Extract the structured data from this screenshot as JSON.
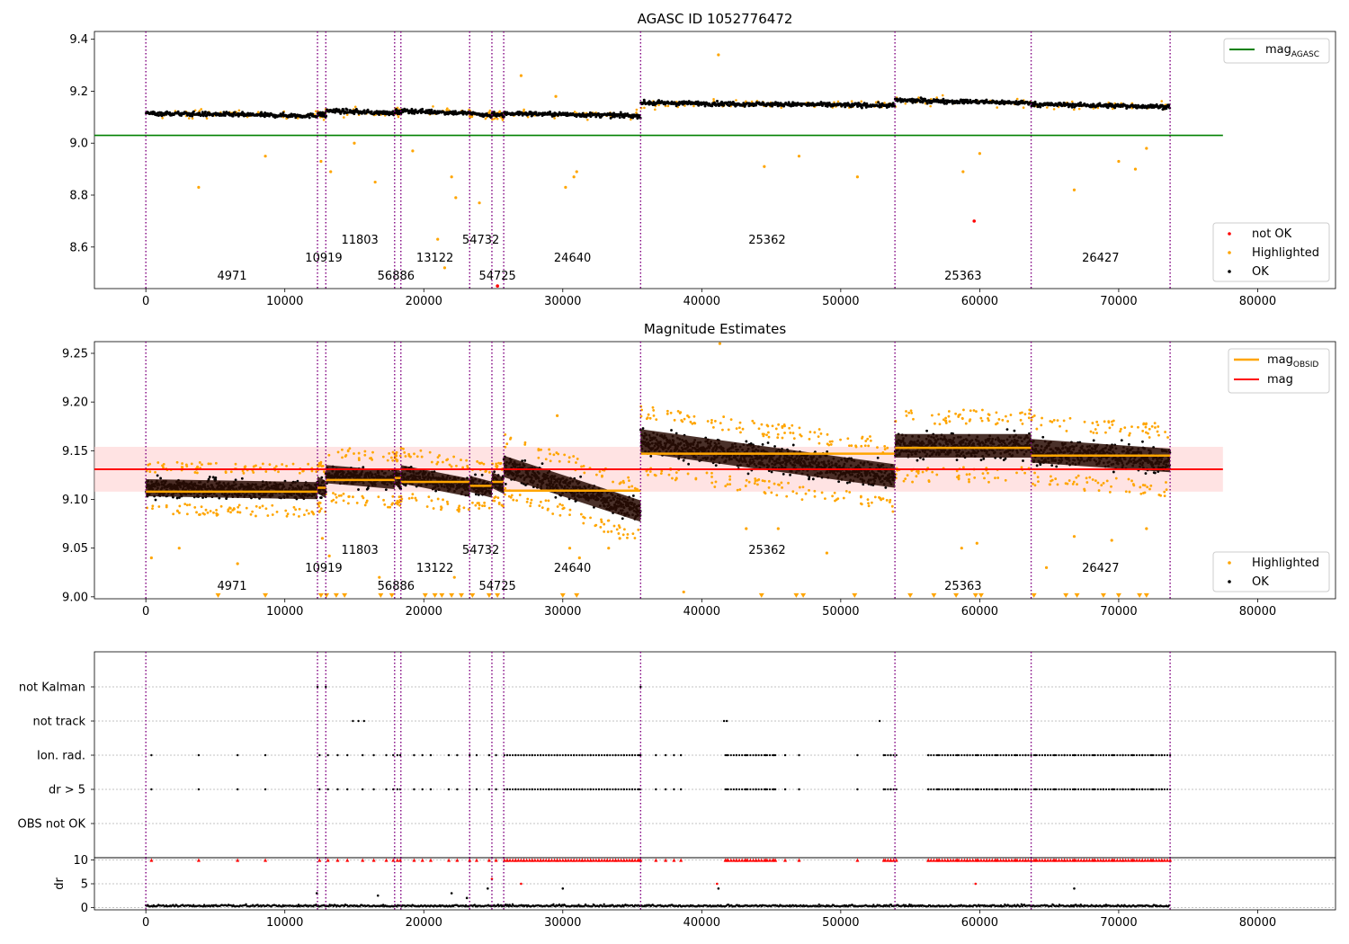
{
  "chart_data": [
    {
      "type": "scatter",
      "title": "AGASC ID 1052776472",
      "xlim": [
        -3700,
        85600
      ],
      "ylim": [
        8.44,
        9.43
      ],
      "xticks": [
        "0",
        "10000",
        "20000",
        "30000",
        "40000",
        "50000",
        "60000",
        "70000",
        "80000"
      ],
      "yticks": [
        "8.6",
        "8.8",
        "9.0",
        "9.2",
        "9.4"
      ],
      "reference_line": {
        "name": "mag_AGASC",
        "value": 9.03,
        "color": "#008000"
      },
      "segments": [
        {
          "x0": 0,
          "x1": 12350,
          "level": 9.11
        },
        {
          "x0": 12350,
          "x1": 12950,
          "level": 9.11
        },
        {
          "x0": 12950,
          "x1": 17900,
          "level": 9.12
        },
        {
          "x0": 17900,
          "x1": 18350,
          "level": 9.12
        },
        {
          "x0": 18350,
          "x1": 23300,
          "level": 9.12
        },
        {
          "x0": 23300,
          "x1": 24900,
          "level": 9.11
        },
        {
          "x0": 24900,
          "x1": 25750,
          "level": 9.11
        },
        {
          "x0": 25750,
          "x1": 35600,
          "level": 9.11
        },
        {
          "x0": 35600,
          "x1": 53900,
          "level": 9.15
        },
        {
          "x0": 53900,
          "x1": 63700,
          "level": 9.16
        },
        {
          "x0": 63700,
          "x1": 73700,
          "level": 9.145
        }
      ],
      "outliers": [
        [
          3800,
          8.83
        ],
        [
          8600,
          8.95
        ],
        [
          12600,
          8.93
        ],
        [
          13300,
          8.89
        ],
        [
          15000,
          9.0
        ],
        [
          16500,
          8.85
        ],
        [
          19200,
          8.97
        ],
        [
          21000,
          8.63
        ],
        [
          21500,
          8.52
        ],
        [
          22000,
          8.87
        ],
        [
          22300,
          8.79
        ],
        [
          24000,
          8.77
        ],
        [
          27000,
          9.26
        ],
        [
          29500,
          9.18
        ],
        [
          30200,
          8.83
        ],
        [
          30800,
          8.87
        ],
        [
          31000,
          8.89
        ],
        [
          41200,
          9.34
        ],
        [
          44500,
          8.91
        ],
        [
          47000,
          8.95
        ],
        [
          51200,
          8.87
        ],
        [
          58800,
          8.89
        ],
        [
          60000,
          8.96
        ],
        [
          66800,
          8.82
        ],
        [
          70000,
          8.93
        ],
        [
          71200,
          8.9
        ],
        [
          72000,
          8.98
        ]
      ],
      "not_ok": [
        [
          59600,
          8.7
        ],
        [
          25300,
          8.45
        ]
      ],
      "obsid_boundaries": [
        0,
        12350,
        12950,
        17900,
        18350,
        23300,
        24900,
        25750,
        35600,
        53900,
        63700,
        73700
      ],
      "obsid_labels": [
        {
          "label": "4971",
          "x": 6200,
          "row": 2
        },
        {
          "label": "10919",
          "x": 12800,
          "row": 1
        },
        {
          "label": "11803",
          "x": 15400,
          "row": 0
        },
        {
          "label": "56886",
          "x": 18000,
          "row": 2
        },
        {
          "label": "13122",
          "x": 20800,
          "row": 1
        },
        {
          "label": "54732",
          "x": 24100,
          "row": 0
        },
        {
          "label": "54725",
          "x": 25300,
          "row": 2
        },
        {
          "label": "24640",
          "x": 30700,
          "row": 1
        },
        {
          "label": "25362",
          "x": 44700,
          "row": 0
        },
        {
          "label": "25363",
          "x": 58800,
          "row": 2
        },
        {
          "label": "26427",
          "x": 68700,
          "row": 1
        }
      ],
      "legend_upper": [
        "mag_AGASC"
      ],
      "legend_lower": [
        "not OK",
        "Highlighted",
        "OK"
      ],
      "legend_upper_pos": "upper right",
      "legend_lower_pos": "lower right"
    },
    {
      "type": "scatter",
      "title": "Magnitude Estimates",
      "xlim": [
        -3700,
        85600
      ],
      "ylim": [
        8.998,
        9.262
      ],
      "xticks": [
        "0",
        "10000",
        "20000",
        "30000",
        "40000",
        "50000",
        "60000",
        "70000",
        "80000"
      ],
      "yticks": [
        "9.00",
        "9.05",
        "9.10",
        "9.15",
        "9.20",
        "9.25"
      ],
      "reference_line": {
        "name": "mag",
        "value": 9.131,
        "color": "#ff0000"
      },
      "band": [
        9.108,
        9.154
      ],
      "obsid_mags": [
        {
          "x0": 0,
          "x1": 12350,
          "mag": 9.108
        },
        {
          "x0": 12350,
          "x1": 12950,
          "mag": 9.112
        },
        {
          "x0": 12950,
          "x1": 17900,
          "mag": 9.12
        },
        {
          "x0": 17900,
          "x1": 18350,
          "mag": 9.122
        },
        {
          "x0": 18350,
          "x1": 23300,
          "mag": 9.118
        },
        {
          "x0": 23300,
          "x1": 24900,
          "mag": 9.114
        },
        {
          "x0": 24900,
          "x1": 25750,
          "mag": 9.118
        },
        {
          "x0": 25750,
          "x1": 35600,
          "mag": 9.109
        },
        {
          "x0": 35600,
          "x1": 53900,
          "mag": 9.147
        },
        {
          "x0": 53900,
          "x1": 63700,
          "mag": 9.153
        },
        {
          "x0": 63700,
          "x1": 73700,
          "mag": 9.145
        }
      ],
      "segments": [
        {
          "x0": 0,
          "x1": 12350,
          "y0": 9.112,
          "y1": 9.109,
          "spread": 0.016
        },
        {
          "x0": 12350,
          "x1": 12950,
          "y0": 9.115,
          "y1": 9.11,
          "spread": 0.016
        },
        {
          "x0": 12950,
          "x1": 17900,
          "y0": 9.126,
          "y1": 9.12,
          "spread": 0.017
        },
        {
          "x0": 17900,
          "x1": 18350,
          "y0": 9.124,
          "y1": 9.12,
          "spread": 0.016
        },
        {
          "x0": 18350,
          "x1": 23300,
          "y0": 9.126,
          "y1": 9.112,
          "spread": 0.017
        },
        {
          "x0": 23300,
          "x1": 24900,
          "y0": 9.116,
          "y1": 9.11,
          "spread": 0.015
        },
        {
          "x0": 24900,
          "x1": 25750,
          "y0": 9.12,
          "y1": 9.114,
          "spread": 0.015
        },
        {
          "x0": 25750,
          "x1": 35600,
          "y0": 9.134,
          "y1": 9.088,
          "spread": 0.02
        },
        {
          "x0": 35600,
          "x1": 53900,
          "y0": 9.16,
          "y1": 9.124,
          "spread": 0.022
        },
        {
          "x0": 53900,
          "x1": 63700,
          "y0": 9.155,
          "y1": 9.155,
          "spread": 0.022
        },
        {
          "x0": 63700,
          "x1": 73700,
          "y0": 9.15,
          "y1": 9.14,
          "spread": 0.022
        }
      ],
      "highlighted_low": [
        [
          5200,
          9.0
        ],
        [
          8600,
          9.0
        ],
        [
          12600,
          9.0
        ],
        [
          13000,
          9.0
        ],
        [
          13700,
          9.0
        ],
        [
          14300,
          9.0
        ],
        [
          16900,
          9.0
        ],
        [
          17700,
          9.0
        ],
        [
          20100,
          9.0
        ],
        [
          20800,
          9.0
        ],
        [
          21300,
          9.0
        ],
        [
          22000,
          9.0
        ],
        [
          22700,
          9.0
        ],
        [
          23500,
          9.0
        ],
        [
          24700,
          9.0
        ],
        [
          25300,
          9.0
        ],
        [
          30000,
          9.0
        ],
        [
          31000,
          9.0
        ],
        [
          44300,
          9.0
        ],
        [
          46800,
          9.0
        ],
        [
          47300,
          9.0
        ],
        [
          51000,
          9.0
        ],
        [
          55000,
          9.0
        ],
        [
          56700,
          9.0
        ],
        [
          58300,
          9.0
        ],
        [
          59700,
          9.0
        ],
        [
          60100,
          9.0
        ],
        [
          63900,
          9.0
        ],
        [
          66200,
          9.0
        ],
        [
          67000,
          9.0
        ],
        [
          68900,
          9.0
        ],
        [
          70000,
          9.0
        ],
        [
          71500,
          9.0
        ],
        [
          72000,
          9.0
        ]
      ],
      "highlighted_scatter": [
        [
          400,
          9.04
        ],
        [
          2400,
          9.05
        ],
        [
          6600,
          9.034
        ],
        [
          12700,
          9.06
        ],
        [
          13200,
          9.042
        ],
        [
          16800,
          9.02
        ],
        [
          22200,
          9.02
        ],
        [
          29600,
          9.186
        ],
        [
          30500,
          9.05
        ],
        [
          31200,
          9.04
        ],
        [
          33300,
          9.05
        ],
        [
          34100,
          9.06
        ],
        [
          38700,
          9.005
        ],
        [
          41300,
          9.26
        ],
        [
          43200,
          9.07
        ],
        [
          45500,
          9.07
        ],
        [
          49000,
          9.045
        ],
        [
          58700,
          9.05
        ],
        [
          59800,
          9.055
        ],
        [
          64800,
          9.03
        ],
        [
          66800,
          9.062
        ],
        [
          69500,
          9.058
        ],
        [
          72000,
          9.07
        ]
      ],
      "obsid_labels": [
        {
          "label": "4971",
          "x": 6200,
          "row": 2
        },
        {
          "label": "10919",
          "x": 12800,
          "row": 1
        },
        {
          "label": "11803",
          "x": 15400,
          "row": 0
        },
        {
          "label": "56886",
          "x": 18000,
          "row": 2
        },
        {
          "label": "13122",
          "x": 20800,
          "row": 1
        },
        {
          "label": "54732",
          "x": 24100,
          "row": 0
        },
        {
          "label": "54725",
          "x": 25300,
          "row": 2
        },
        {
          "label": "24640",
          "x": 30700,
          "row": 1
        },
        {
          "label": "25362",
          "x": 44700,
          "row": 0
        },
        {
          "label": "25363",
          "x": 58800,
          "row": 2
        },
        {
          "label": "26427",
          "x": 68700,
          "row": 1
        }
      ],
      "legend_upper": [
        "mag_OBSID",
        "mag"
      ],
      "legend_lower": [
        "Highlighted",
        "OK"
      ],
      "legend_upper_pos": "upper right",
      "legend_lower_pos": "lower right"
    },
    {
      "type": "scatter",
      "title": "",
      "xlim": [
        -3700,
        85600
      ],
      "categories": [
        "not Kalman",
        "not track",
        "Ion. rad.",
        "dr > 5",
        "OBS not OK"
      ],
      "flag_events": {
        "not Kalman": [
          12350,
          12950,
          35600
        ],
        "not track": [
          14900,
          15300,
          15700,
          41600,
          41800,
          52800
        ],
        "Ion. rad.": [
          400,
          3800,
          6600,
          8600,
          12500,
          13100,
          13800,
          14500,
          15600,
          16400,
          17300,
          17800,
          18100,
          18300,
          19300,
          19900,
          20500,
          21800,
          22400,
          23300,
          23800,
          24700,
          25200,
          26000,
          26600,
          27200,
          27800,
          28400,
          29000,
          29600,
          30200,
          30800,
          31400,
          32000,
          32600,
          33200,
          33800,
          34400,
          35000,
          35500,
          36700,
          37400,
          38000,
          38500,
          41800,
          42500,
          43200,
          43900,
          44600,
          45200,
          46000,
          47000,
          51200,
          53100,
          53600,
          56300,
          57000,
          57700,
          58400,
          59100,
          59800,
          60500,
          61200,
          61900,
          62600,
          63300,
          64000,
          64700,
          65400,
          66100,
          66800,
          67500,
          68200,
          68900,
          69600,
          70300,
          71000,
          71700,
          72400,
          73100
        ],
        "dr > 5": [
          400,
          3800,
          6600,
          8600,
          12500,
          13100,
          13800,
          14500,
          15600,
          16400,
          17300,
          17800,
          18100,
          18300,
          19300,
          19900,
          20500,
          21800,
          22400,
          23300,
          23800,
          24700,
          25200,
          26000,
          26600,
          27200,
          27800,
          28400,
          29000,
          29600,
          30200,
          30800,
          31400,
          32000,
          32600,
          33200,
          33800,
          34400,
          35000,
          35500,
          36700,
          37400,
          38000,
          38500,
          41800,
          42500,
          43200,
          43900,
          44600,
          45200,
          46000,
          47000,
          51200,
          53100,
          53600,
          56300,
          57000,
          57700,
          58400,
          59100,
          59800,
          60500,
          61200,
          61900,
          62600,
          63300,
          64000,
          64700,
          65400,
          66100,
          66800,
          67500,
          68200,
          68900,
          69600,
          70300,
          71000,
          71700,
          72400,
          73100
        ],
        "OBS not OK": []
      },
      "dense_ranges": [
        [
          25800,
          35600
        ],
        [
          41700,
          45300
        ],
        [
          53200,
          54000
        ],
        [
          56300,
          73700
        ]
      ]
    },
    {
      "type": "scatter",
      "title": "",
      "ylabel": "dr",
      "xlim": [
        -3700,
        85600
      ],
      "ylim": [
        -0.5,
        10.5
      ],
      "xticks": [
        "0",
        "10000",
        "20000",
        "30000",
        "40000",
        "50000",
        "60000",
        "70000",
        "80000"
      ],
      "yticks": [
        "0",
        "5",
        "10"
      ],
      "capped_value": 10,
      "scattered_points": [
        [
          12300,
          3
        ],
        [
          16700,
          2.5
        ],
        [
          22000,
          3
        ],
        [
          23100,
          2
        ],
        [
          24600,
          4
        ],
        [
          24900,
          6
        ],
        [
          27000,
          5
        ],
        [
          30000,
          4
        ],
        [
          41100,
          5
        ],
        [
          41200,
          4
        ],
        [
          59700,
          5
        ],
        [
          66800,
          4
        ]
      ]
    }
  ]
}
